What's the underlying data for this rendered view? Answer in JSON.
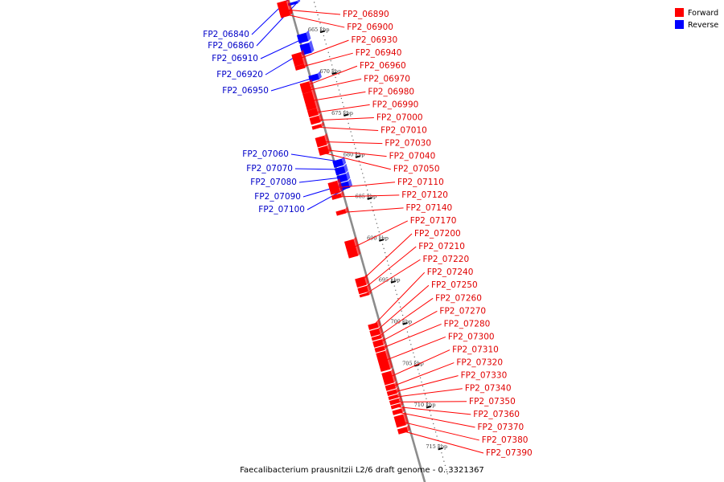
{
  "caption": "Faecalibacterium prausnitzii L2/6 draft genome - 0..3321367",
  "legend": [
    {
      "label": "Forward",
      "color": "#ff0000"
    },
    {
      "label": "Reverse",
      "color": "#0000ff"
    }
  ],
  "colors": {
    "forward": "#ff0000",
    "reverse": "#0000ff",
    "backbone": "#8c8c8c"
  },
  "ticks": [
    {
      "label": "665 kbp",
      "kbp": 665
    },
    {
      "label": "670 kbp",
      "kbp": 670
    },
    {
      "label": "675 kbp",
      "kbp": 675
    },
    {
      "label": "680 kbp",
      "kbp": 680
    },
    {
      "label": "685 kbp",
      "kbp": 685
    },
    {
      "label": "690 kbp",
      "kbp": 690
    },
    {
      "label": "695 kbp",
      "kbp": 695
    },
    {
      "label": "700 kbp",
      "kbp": 700
    },
    {
      "label": "705 kbp",
      "kbp": 705
    },
    {
      "label": "710 kbp",
      "kbp": 710
    },
    {
      "label": "715 kbp",
      "kbp": 715
    }
  ],
  "forward_genes": [
    {
      "name": "FP2_06890",
      "kbp": 660.4,
      "len": 1.8
    },
    {
      "name": "FP2_06900",
      "kbp": 661.6,
      "len": 0.5
    },
    {
      "name": "FP2_06930",
      "kbp": 666.6,
      "len": 1.4
    },
    {
      "name": "FP2_06940",
      "kbp": 668.0,
      "len": 0.5
    },
    {
      "name": "FP2_06960",
      "kbp": 670.1,
      "len": 0.8
    },
    {
      "name": "FP2_06970",
      "kbp": 670.8,
      "len": 0.5
    },
    {
      "name": "FP2_06980",
      "kbp": 671.3,
      "len": 2.0
    },
    {
      "name": "FP2_06990",
      "kbp": 673.3,
      "len": 0.8
    },
    {
      "name": "FP2_07000",
      "kbp": 674.2,
      "len": 0.8
    },
    {
      "name": "FP2_07010",
      "kbp": 675.2,
      "len": 0.4
    },
    {
      "name": "FP2_07030",
      "kbp": 676.6,
      "len": 1.1
    },
    {
      "name": "FP2_07040",
      "kbp": 677.8,
      "len": 0.6
    },
    {
      "name": "FP2_07050",
      "kbp": 678.3,
      "len": 0.4
    },
    {
      "name": "FP2_07110",
      "kbp": 682.0,
      "len": 1.4
    },
    {
      "name": "FP2_07120",
      "kbp": 683.5,
      "len": 0.5
    },
    {
      "name": "FP2_07140",
      "kbp": 685.4,
      "len": 0.5
    },
    {
      "name": "FP2_07170",
      "kbp": 689.0,
      "len": 2.0
    },
    {
      "name": "FP2_07200",
      "kbp": 693.5,
      "len": 1.0
    },
    {
      "name": "FP2_07210",
      "kbp": 694.6,
      "len": 0.7
    },
    {
      "name": "FP2_07220",
      "kbp": 695.4,
      "len": 0.3
    },
    {
      "name": "FP2_07240",
      "kbp": 699.0,
      "len": 0.6
    },
    {
      "name": "FP2_07250",
      "kbp": 699.7,
      "len": 0.7
    },
    {
      "name": "FP2_07260",
      "kbp": 700.5,
      "len": 0.4
    },
    {
      "name": "FP2_07270",
      "kbp": 701.0,
      "len": 0.7
    },
    {
      "name": "FP2_07280",
      "kbp": 701.8,
      "len": 0.5
    },
    {
      "name": "FP2_07300",
      "kbp": 702.4,
      "len": 2.2
    },
    {
      "name": "FP2_07310",
      "kbp": 704.8,
      "len": 1.4
    },
    {
      "name": "FP2_07320",
      "kbp": 706.3,
      "len": 0.6
    },
    {
      "name": "FP2_07330",
      "kbp": 707.0,
      "len": 0.5
    },
    {
      "name": "FP2_07340",
      "kbp": 707.6,
      "len": 0.4
    },
    {
      "name": "FP2_07350",
      "kbp": 708.1,
      "len": 0.5
    },
    {
      "name": "FP2_07360",
      "kbp": 708.7,
      "len": 0.4
    },
    {
      "name": "FP2_07370",
      "kbp": 709.3,
      "len": 0.5
    },
    {
      "name": "FP2_07380",
      "kbp": 710.0,
      "len": 1.3
    },
    {
      "name": "FP2_07390",
      "kbp": 711.5,
      "len": 0.6
    }
  ],
  "reverse_genes": [
    {
      "name": "FP2_06840",
      "kbp": 659.7,
      "len": 0.3
    },
    {
      "name": "FP2_06860",
      "kbp": 660.8,
      "len": 0.3
    },
    {
      "name": "FP2_06910",
      "kbp": 664.6,
      "len": 1.0
    },
    {
      "name": "FP2_06920",
      "kbp": 665.8,
      "len": 1.2
    },
    {
      "name": "FP2_06950",
      "kbp": 669.5,
      "len": 0.7
    },
    {
      "name": "FP2_07060",
      "kbp": 679.7,
      "len": 0.8
    },
    {
      "name": "FP2_07070",
      "kbp": 680.6,
      "len": 0.8
    },
    {
      "name": "FP2_07080",
      "kbp": 681.5,
      "len": 0.8
    },
    {
      "name": "FP2_07090",
      "kbp": 682.4,
      "len": 0.5
    },
    {
      "name": "FP2_07100",
      "kbp": 682.9,
      "len": 0.3
    }
  ]
}
